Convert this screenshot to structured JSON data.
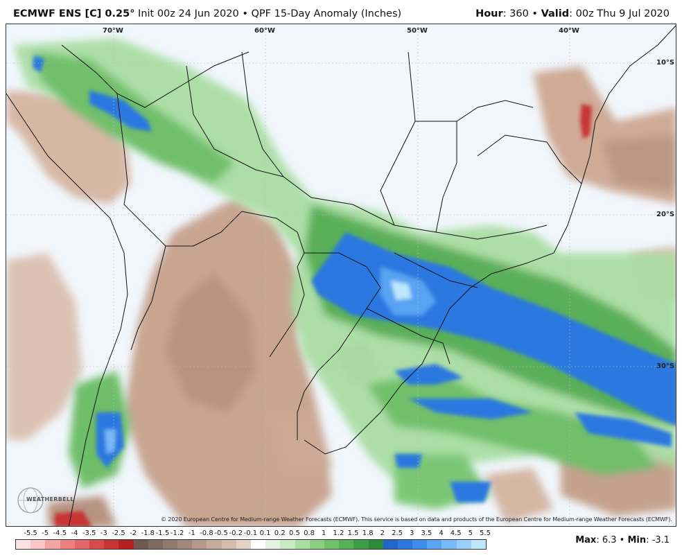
{
  "header": {
    "model": "ECMWF ENS [C] 0.25",
    "degree": "°",
    "init": " Init 00z 24 Jun 2020 • QPF 15-Day Anomaly (Inches)",
    "hour_label": "Hour",
    "hour_value": ": 360 • ",
    "valid_label": "Valid",
    "valid_value": ": 00z Thu 9 Jul 2020"
  },
  "map": {
    "lon_labels": [
      "70°W",
      "60°W",
      "50°W",
      "40°W"
    ],
    "lat_labels": [
      "10°S",
      "20°S",
      "30°S"
    ],
    "copyright": "© 2020 European Centre for Medium-range Weather Forecasts (ECMWF). This service is based on data and products of the European Centre for Medium-range Weather Forecasts (ECMWF).",
    "logo_text": "WEATHERBELL",
    "logo_icon": "weatherbell-globe-icon"
  },
  "legend": {
    "ticks": [
      "-5.5",
      "-5",
      "-4.5",
      "-4",
      "-3.5",
      "-3",
      "-2.5",
      "-2",
      "-1.8",
      "-1.5",
      "-1.2",
      "-1",
      "-0.8",
      "-0.5",
      "-0.2",
      "-0.1",
      "0.1",
      "0.2",
      "0.5",
      "0.8",
      "1",
      "1.2",
      "1.5",
      "1.8",
      "2",
      "2.5",
      "3",
      "3.5",
      "4",
      "4.5",
      "5",
      "5.5"
    ],
    "colors": [
      "#fde3e3",
      "#fbc6c6",
      "#f5a3a3",
      "#ee8080",
      "#e46565",
      "#d84b4b",
      "#c73434",
      "#b52020",
      "#6e5a52",
      "#7f6a60",
      "#91796d",
      "#a3897b",
      "#b4998a",
      "#c5ab9b",
      "#d5bcab",
      "#e6d2c4",
      "#ffffff",
      "#e2f4df",
      "#c7eac1",
      "#a9dda2",
      "#8ccf84",
      "#70c06a",
      "#55b056",
      "#3c9d45",
      "#2c8a3a",
      "#2266cc",
      "#2a78e0",
      "#3e8cec",
      "#59a3f2",
      "#78baf6",
      "#97cff9",
      "#bfe7fc"
    ]
  },
  "stats": {
    "max_label": "Max",
    "max_value": ": 6.3 • ",
    "min_label": "Min",
    "min_value": ": -3.1"
  }
}
